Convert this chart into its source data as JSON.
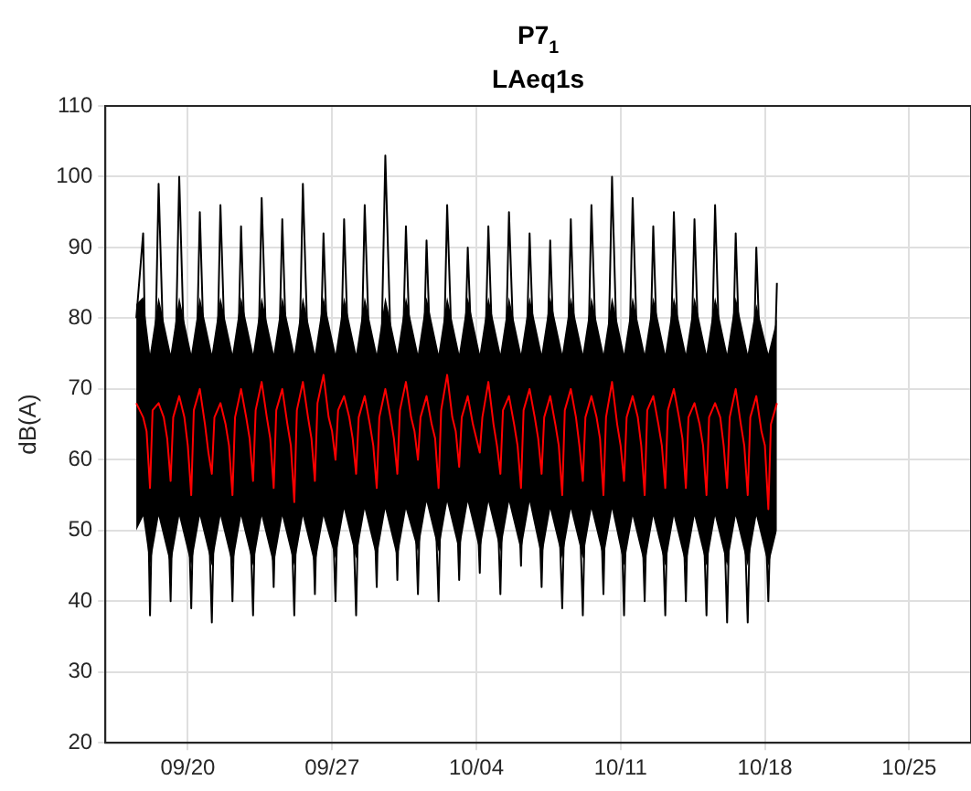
{
  "chart_data": {
    "type": "line",
    "title": "P7$_{1}$",
    "subtitle": "LAeq1s",
    "ylabel": "dB(A)",
    "xlim": [
      "--09-16",
      "--10-28"
    ],
    "xticks": [
      {
        "value": "--09-20",
        "label": "09/20"
      },
      {
        "value": "--09-27",
        "label": "09/27"
      },
      {
        "value": "--10-04",
        "label": "10/04"
      },
      {
        "value": "--10-11",
        "label": "10/11"
      },
      {
        "value": "--10-18",
        "label": "10/18"
      },
      {
        "value": "--10-25",
        "label": "10/25"
      }
    ],
    "ylim": [
      20,
      110
    ],
    "yticks": [
      20,
      30,
      40,
      50,
      60,
      70,
      80,
      90,
      100,
      110
    ],
    "grid": true,
    "legend": false,
    "marker": "none",
    "line_style": "solid",
    "series": [
      {
        "color": "#000000",
        "x": [
          "--09-17T12:00",
          "--09-17T20:00",
          "--09-18T04:00",
          "--09-18T14:00",
          "--09-19T04:00",
          "--09-19T14:00",
          "--09-20T04:00",
          "--09-20T14:00",
          "--09-21T04:00",
          "--09-21T14:00",
          "--09-22T04:00",
          "--09-22T14:00",
          "--09-23T04:00",
          "--09-23T14:00",
          "--09-24T04:00",
          "--09-24T14:00",
          "--09-25T04:00",
          "--09-25T14:00",
          "--09-26T04:00",
          "--09-26T14:00",
          "--09-27T04:00",
          "--09-27T14:00",
          "--09-28T04:00",
          "--09-28T14:00",
          "--09-29T04:00",
          "--09-29T14:00",
          "--09-30T04:00",
          "--09-30T14:00",
          "--10-01T04:00",
          "--10-01T14:00",
          "--10-02T04:00",
          "--10-02T14:00",
          "--10-03T04:00",
          "--10-03T14:00",
          "--10-04T04:00",
          "--10-04T14:00",
          "--10-05T04:00",
          "--10-05T14:00",
          "--10-06T04:00",
          "--10-06T14:00",
          "--10-07T04:00",
          "--10-07T14:00",
          "--10-08T04:00",
          "--10-08T14:00",
          "--10-09T04:00",
          "--10-09T14:00",
          "--10-10T04:00",
          "--10-10T14:00",
          "--10-11T04:00",
          "--10-11T14:00",
          "--10-12T04:00",
          "--10-12T14:00",
          "--10-13T04:00",
          "--10-13T14:00",
          "--10-14T04:00",
          "--10-14T14:00",
          "--10-15T04:00",
          "--10-15T14:00",
          "--10-16T04:00",
          "--10-16T14:00",
          "--10-17T04:00",
          "--10-17T14:00",
          "--10-18T04:00",
          "--10-18T14:00"
        ],
        "values": [
          80,
          92,
          38,
          99,
          40,
          100,
          39,
          95,
          37,
          96,
          40,
          93,
          38,
          97,
          42,
          94,
          38,
          99,
          41,
          92,
          40,
          94,
          38,
          96,
          42,
          103,
          43,
          93,
          41,
          91,
          40,
          96,
          43,
          90,
          44,
          93,
          41,
          95,
          45,
          92,
          42,
          91,
          39,
          94,
          38,
          96,
          41,
          100,
          38,
          97,
          40,
          93,
          38,
          95,
          40,
          94,
          38,
          96,
          37,
          92,
          37,
          90,
          40,
          85
        ],
        "lower": [
          50,
          52,
          45,
          52,
          45,
          52,
          45,
          52,
          45,
          52,
          45,
          52,
          45,
          52,
          45,
          52,
          45,
          52,
          45,
          52,
          46,
          53,
          46,
          53,
          46,
          53,
          46,
          53,
          47,
          54,
          47,
          54,
          47,
          54,
          47,
          54,
          47,
          54,
          47,
          54,
          46,
          53,
          46,
          53,
          46,
          53,
          46,
          53,
          45,
          52,
          45,
          52,
          45,
          52,
          45,
          52,
          45,
          52,
          45,
          52,
          45,
          52,
          45,
          50
        ],
        "upper": [
          82,
          83,
          75,
          83,
          75,
          83,
          75,
          83,
          75,
          83,
          75,
          83,
          75,
          83,
          75,
          83,
          75,
          83,
          75,
          83,
          75,
          83,
          75,
          83,
          75,
          83,
          75,
          83,
          75,
          83,
          75,
          83,
          75,
          83,
          75,
          83,
          75,
          83,
          75,
          83,
          75,
          83,
          75,
          83,
          75,
          83,
          75,
          83,
          75,
          83,
          75,
          83,
          75,
          83,
          75,
          83,
          75,
          83,
          75,
          83,
          75,
          82,
          75,
          80
        ]
      },
      {
        "color": "#ff0000",
        "x": [
          "--09-17T12:00",
          "--09-17T20:00",
          "--09-18T00:00",
          "--09-18T04:00",
          "--09-18T07:00",
          "--09-18T14:00",
          "--09-18T20:00",
          "--09-19T00:00",
          "--09-19T04:00",
          "--09-19T07:00",
          "--09-19T14:00",
          "--09-19T20:00",
          "--09-20T00:00",
          "--09-20T04:00",
          "--09-20T07:00",
          "--09-20T14:00",
          "--09-20T20:00",
          "--09-21T00:00",
          "--09-21T04:00",
          "--09-21T07:00",
          "--09-21T14:00",
          "--09-21T20:00",
          "--09-22T00:00",
          "--09-22T04:00",
          "--09-22T07:00",
          "--09-22T14:00",
          "--09-22T20:00",
          "--09-23T00:00",
          "--09-23T04:00",
          "--09-23T07:00",
          "--09-23T14:00",
          "--09-23T20:00",
          "--09-24T00:00",
          "--09-24T04:00",
          "--09-24T07:00",
          "--09-24T14:00",
          "--09-24T20:00",
          "--09-25T00:00",
          "--09-25T04:00",
          "--09-25T07:00",
          "--09-25T14:00",
          "--09-25T20:00",
          "--09-26T00:00",
          "--09-26T04:00",
          "--09-26T07:00",
          "--09-26T14:00",
          "--09-26T20:00",
          "--09-27T00:00",
          "--09-27T04:00",
          "--09-27T07:00",
          "--09-27T14:00",
          "--09-27T20:00",
          "--09-28T00:00",
          "--09-28T04:00",
          "--09-28T07:00",
          "--09-28T14:00",
          "--09-28T20:00",
          "--09-29T00:00",
          "--09-29T04:00",
          "--09-29T07:00",
          "--09-29T14:00",
          "--09-29T20:00",
          "--09-30T00:00",
          "--09-30T04:00",
          "--09-30T07:00",
          "--09-30T14:00",
          "--09-30T20:00",
          "--10-01T00:00",
          "--10-01T04:00",
          "--10-01T07:00",
          "--10-01T14:00",
          "--10-01T20:00",
          "--10-02T00:00",
          "--10-02T04:00",
          "--10-02T07:00",
          "--10-02T14:00",
          "--10-02T20:00",
          "--10-03T00:00",
          "--10-03T04:00",
          "--10-03T07:00",
          "--10-03T14:00",
          "--10-03T20:00",
          "--10-04T00:00",
          "--10-04T04:00",
          "--10-04T07:00",
          "--10-04T14:00",
          "--10-04T20:00",
          "--10-05T00:00",
          "--10-05T04:00",
          "--10-05T07:00",
          "--10-05T14:00",
          "--10-05T20:00",
          "--10-06T00:00",
          "--10-06T04:00",
          "--10-06T07:00",
          "--10-06T14:00",
          "--10-06T20:00",
          "--10-07T00:00",
          "--10-07T04:00",
          "--10-07T07:00",
          "--10-07T14:00",
          "--10-07T20:00",
          "--10-08T00:00",
          "--10-08T04:00",
          "--10-08T07:00",
          "--10-08T14:00",
          "--10-08T20:00",
          "--10-09T00:00",
          "--10-09T04:00",
          "--10-09T07:00",
          "--10-09T14:00",
          "--10-09T20:00",
          "--10-10T00:00",
          "--10-10T04:00",
          "--10-10T07:00",
          "--10-10T14:00",
          "--10-10T20:00",
          "--10-11T00:00",
          "--10-11T04:00",
          "--10-11T07:00",
          "--10-11T14:00",
          "--10-11T20:00",
          "--10-12T00:00",
          "--10-12T04:00",
          "--10-12T07:00",
          "--10-12T14:00",
          "--10-12T20:00",
          "--10-13T00:00",
          "--10-13T04:00",
          "--10-13T07:00",
          "--10-13T14:00",
          "--10-13T20:00",
          "--10-14T00:00",
          "--10-14T04:00",
          "--10-14T07:00",
          "--10-14T14:00",
          "--10-14T20:00",
          "--10-15T00:00",
          "--10-15T04:00",
          "--10-15T07:00",
          "--10-15T14:00",
          "--10-15T20:00",
          "--10-16T00:00",
          "--10-16T04:00",
          "--10-16T07:00",
          "--10-16T14:00",
          "--10-16T20:00",
          "--10-17T00:00",
          "--10-17T04:00",
          "--10-17T07:00",
          "--10-17T14:00",
          "--10-17T20:00",
          "--10-18T00:00",
          "--10-18T04:00",
          "--10-18T07:00",
          "--10-18T14:00"
        ],
        "values": [
          68,
          66,
          64,
          56,
          67,
          68,
          66,
          63,
          57,
          66,
          69,
          66,
          62,
          55,
          67,
          70,
          65,
          61,
          58,
          66,
          68,
          65,
          62,
          55,
          66,
          70,
          66,
          63,
          57,
          67,
          71,
          66,
          63,
          56,
          67,
          70,
          65,
          62,
          54,
          67,
          71,
          66,
          63,
          57,
          68,
          72,
          66,
          64,
          60,
          67,
          69,
          66,
          63,
          58,
          66,
          69,
          65,
          62,
          56,
          66,
          70,
          66,
          63,
          58,
          67,
          71,
          66,
          64,
          60,
          66,
          69,
          65,
          63,
          56,
          67,
          72,
          66,
          64,
          59,
          66,
          69,
          65,
          63,
          61,
          66,
          71,
          65,
          62,
          58,
          67,
          69,
          65,
          62,
          56,
          67,
          70,
          66,
          63,
          58,
          66,
          69,
          65,
          62,
          55,
          67,
          70,
          66,
          62,
          57,
          66,
          69,
          66,
          63,
          55,
          66,
          71,
          65,
          62,
          57,
          66,
          69,
          66,
          62,
          55,
          67,
          69,
          65,
          62,
          56,
          67,
          70,
          66,
          63,
          56,
          66,
          68,
          65,
          62,
          55,
          66,
          68,
          66,
          62,
          56,
          66,
          70,
          65,
          62,
          55,
          66,
          69,
          64,
          62,
          53,
          65,
          68
        ]
      }
    ]
  }
}
